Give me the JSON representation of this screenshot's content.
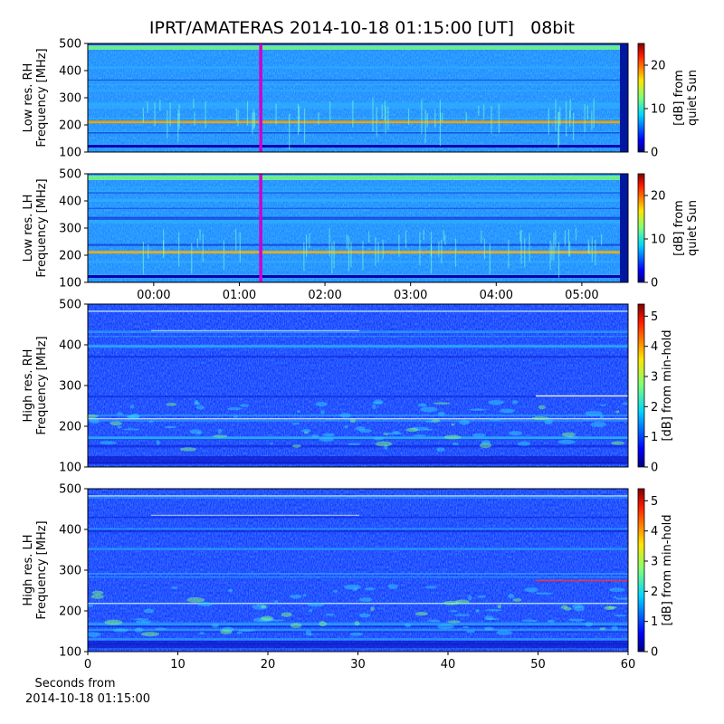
{
  "title": "IPRT/AMATERAS 2014-10-18 01:15:00 [UT]   08bit",
  "chart_data": [
    {
      "type": "heatmap",
      "ylabel": [
        "Low res. RH",
        "Frequency [MHz]"
      ],
      "xlim": [
        -0.77,
        5.54
      ],
      "ylim": [
        100,
        500
      ],
      "yticks": [
        100,
        200,
        300,
        400,
        500
      ],
      "marker_x": 1.25,
      "marker_color": "#cc00cc",
      "colorbar_label": [
        "[dB] from",
        "quiet Sun"
      ],
      "clim": [
        0,
        25
      ],
      "cticks": [
        0,
        10,
        20
      ]
    },
    {
      "type": "heatmap",
      "ylabel": [
        "Low res. LH",
        "Frequency [MHz]"
      ],
      "xlim": [
        -0.77,
        5.54
      ],
      "ylim": [
        100,
        500
      ],
      "yticks": [
        100,
        200,
        300,
        400,
        500
      ],
      "xticks": [
        {
          "value": 0,
          "label": "00:00"
        },
        {
          "value": 1,
          "label": "01:00"
        },
        {
          "value": 2,
          "label": "02:00"
        },
        {
          "value": 3,
          "label": "03:00"
        },
        {
          "value": 4,
          "label": "04:00"
        },
        {
          "value": 5,
          "label": "05:00"
        }
      ],
      "marker_x": 1.25,
      "marker_color": "#cc00cc",
      "colorbar_label": [
        "[dB] from",
        "quiet Sun"
      ],
      "clim": [
        0,
        25
      ],
      "cticks": [
        0,
        10,
        20
      ]
    },
    {
      "type": "heatmap",
      "ylabel": [
        "High res. RH",
        "Frequency [MHz]"
      ],
      "xlim": [
        0,
        60
      ],
      "ylim": [
        100,
        500
      ],
      "yticks": [
        100,
        200,
        300,
        400,
        500
      ],
      "colorbar_label": [
        "[dB] from min-hold"
      ],
      "clim": [
        0,
        5.4
      ],
      "cticks": [
        0,
        1,
        2,
        3,
        4,
        5
      ]
    },
    {
      "type": "heatmap",
      "ylabel": [
        "High res. LH",
        "Frequency [MHz]"
      ],
      "xlim": [
        0,
        60
      ],
      "ylim": [
        100,
        500
      ],
      "yticks": [
        100,
        200,
        300,
        400,
        500
      ],
      "xticks": [
        0,
        10,
        20,
        30,
        40,
        50,
        60
      ],
      "xlabel": [
        "Seconds from",
        "2014-10-18 01:15:00"
      ],
      "colorbar_label": [
        "[dB] from min-hold"
      ],
      "clim": [
        0,
        5.4
      ],
      "cticks": [
        0,
        1,
        2,
        3,
        4,
        5
      ]
    }
  ]
}
